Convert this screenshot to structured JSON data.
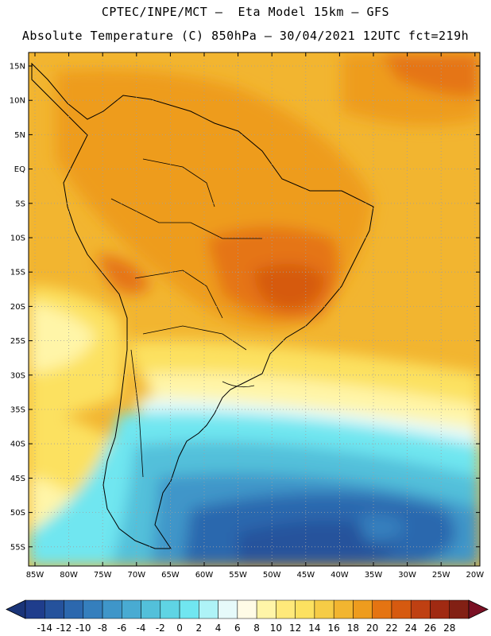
{
  "header": {
    "line1": "CPTEC/INPE/MCT –  Eta Model 15km – GFS",
    "line2": "Absolute Temperature (C) 850hPa – 30/04/2021 12UTC fct=219h"
  },
  "axes": {
    "lat_labels": [
      "15N",
      "10N",
      "5N",
      "EQ",
      "5S",
      "10S",
      "15S",
      "20S",
      "25S",
      "30S",
      "35S",
      "40S",
      "45S",
      "50S",
      "55S"
    ],
    "lon_labels": [
      "85W",
      "80W",
      "75W",
      "70W",
      "65W",
      "60W",
      "55W",
      "50W",
      "45W",
      "40W",
      "35W",
      "30W",
      "25W",
      "20W"
    ]
  },
  "colorbar": {
    "labels": [
      "-14",
      "-12",
      "-10",
      "-8",
      "-6",
      "-4",
      "-2",
      "0",
      "2",
      "4",
      "6",
      "8",
      "10",
      "12",
      "14",
      "16",
      "18",
      "20",
      "22",
      "24",
      "26",
      "28"
    ],
    "colors": [
      "#1f3d8c",
      "#25529c",
      "#2c68ae",
      "#357fbd",
      "#3f96c9",
      "#49abd2",
      "#53c0da",
      "#5fd4e4",
      "#70e6f0",
      "#aef3f7",
      "#e6fafa",
      "#fffbe6",
      "#fff5a8",
      "#ffe97a",
      "#fce160",
      "#f6cc46",
      "#f2b530",
      "#ee9c1e",
      "#e57412",
      "#d65a10",
      "#bf4012",
      "#a02a12",
      "#822014"
    ],
    "underflow_color": "#1a3478",
    "overflow_color": "#7a1024"
  }
}
